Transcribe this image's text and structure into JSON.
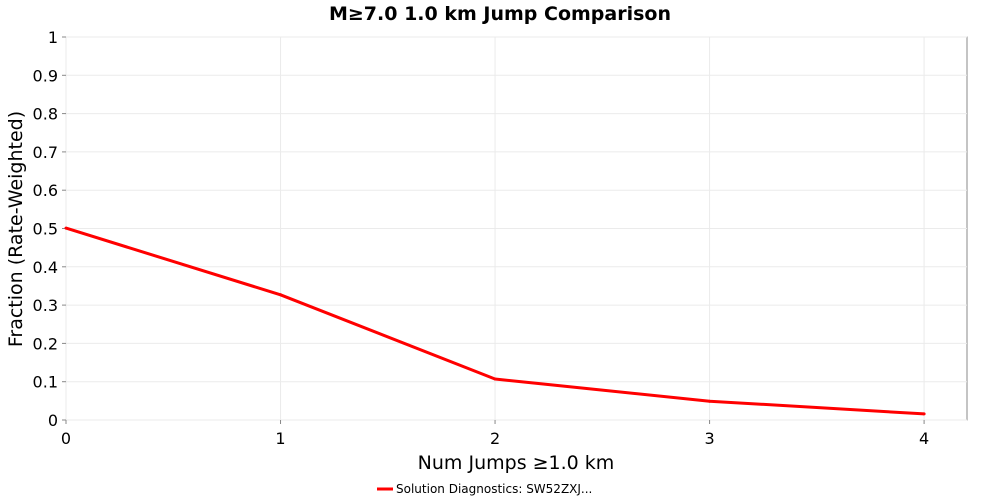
{
  "chart_data": {
    "type": "line",
    "title": "M≥7.0 1.0 km Jump Comparison",
    "xlabel": "Num Jumps ≥1.0 km",
    "ylabel": "Fraction (Rate-Weighted)",
    "xlim": [
      0,
      4.2
    ],
    "ylim": [
      0,
      1
    ],
    "x_ticks": [
      0,
      1,
      2,
      3,
      4
    ],
    "y_ticks": [
      0,
      0.1,
      0.2,
      0.3,
      0.4,
      0.5,
      0.6,
      0.7,
      0.8,
      0.9,
      1
    ],
    "grid": true,
    "legend_position": "bottom-center",
    "series": [
      {
        "name": "Solution Diagnostics: SW52ZXJ...",
        "color": "#ff0000",
        "x": [
          0,
          1,
          2,
          3,
          4
        ],
        "y": [
          0.501,
          0.327,
          0.107,
          0.049,
          0.016
        ]
      }
    ]
  }
}
